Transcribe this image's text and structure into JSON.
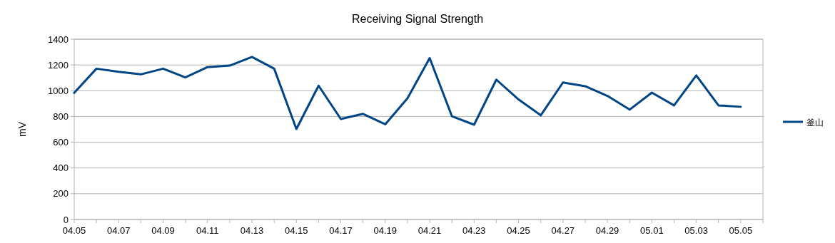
{
  "chart_data": {
    "type": "line",
    "title": "Receiving Signal Strength",
    "ylabel": "mV",
    "categories": [
      "04.05",
      null,
      "04.07",
      null,
      "04.09",
      null,
      "04.11",
      null,
      "04.13",
      null,
      "04.15",
      null,
      "04.17",
      null,
      "04.19",
      null,
      "04.21",
      null,
      "04.23",
      null,
      "04.25",
      null,
      "04.27",
      null,
      "04.29",
      null,
      "05.01",
      null,
      "05.03",
      null,
      "05.05"
    ],
    "series": [
      {
        "name": "釜山",
        "color": "#004586",
        "values": [
          983,
          1171,
          1147,
          1127,
          1171,
          1103,
          1183,
          1195,
          1262,
          1171,
          703,
          1039,
          780,
          820,
          739,
          941,
          1253,
          802,
          736,
          1086,
          932,
          809,
          1064,
          1035,
          960,
          853,
          985,
          886,
          1119,
          886,
          875
        ]
      }
    ],
    "ylim": [
      0,
      1400
    ],
    "yticks": [
      0,
      200,
      400,
      600,
      800,
      1000,
      1200,
      1400
    ],
    "grid": "y",
    "legend": "right",
    "marker": "none",
    "line_style": "solid"
  }
}
